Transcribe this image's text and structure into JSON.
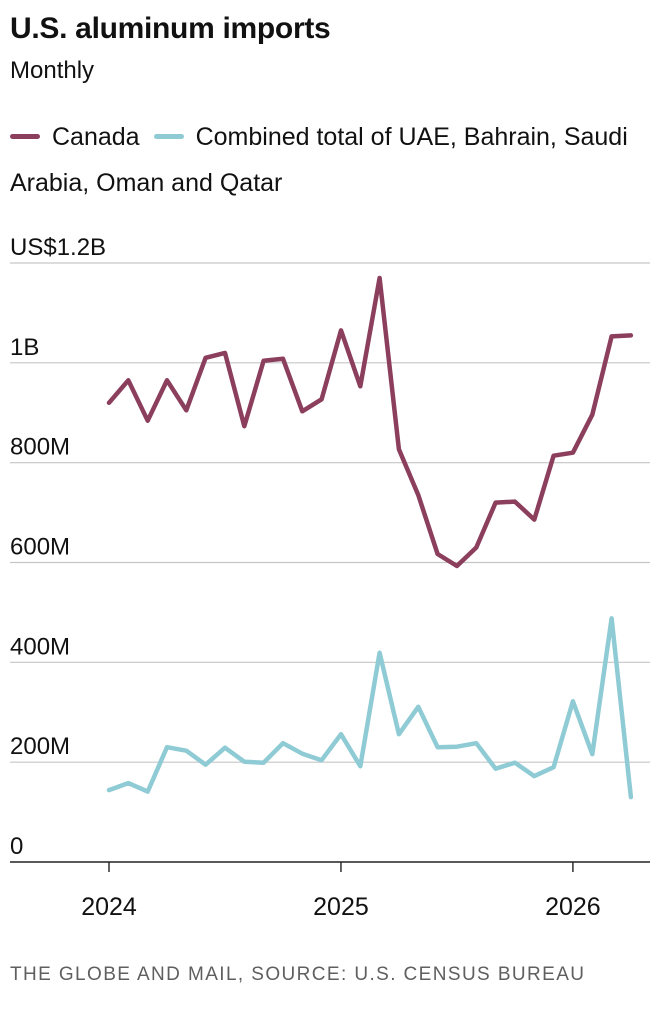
{
  "title": "U.S. aluminum imports",
  "subtitle": "Monthly",
  "source": "THE GLOBE AND MAIL, SOURCE: U.S. CENSUS BUREAU",
  "chart_data": {
    "type": "line",
    "title": "U.S. aluminum imports",
    "subtitle": "Monthly",
    "xlabel": "",
    "ylabel": "",
    "x": [
      "2024-01",
      "2024-02",
      "2024-03",
      "2024-04",
      "2024-05",
      "2024-06",
      "2024-07",
      "2024-08",
      "2024-09",
      "2024-10",
      "2024-11",
      "2024-12",
      "2025-01",
      "2025-02",
      "2025-03",
      "2025-04",
      "2025-05",
      "2025-06",
      "2025-07",
      "2025-08",
      "2025-09",
      "2025-10",
      "2025-11",
      "2025-12",
      "2026-01",
      "2026-02",
      "2026-03",
      "2026-04"
    ],
    "x_ticks": [
      {
        "value": "2024-01",
        "label": "2024"
      },
      {
        "value": "2025-01",
        "label": "2025"
      },
      {
        "value": "2026-01",
        "label": "2026"
      }
    ],
    "ylim": [
      0,
      1200000000
    ],
    "y_ticks": [
      {
        "value": 0,
        "label": "0"
      },
      {
        "value": 200000000,
        "label": "200M"
      },
      {
        "value": 400000000,
        "label": "400M"
      },
      {
        "value": 600000000,
        "label": "600M"
      },
      {
        "value": 800000000,
        "label": "800M"
      },
      {
        "value": 1000000000,
        "label": "1B"
      },
      {
        "value": 1200000000,
        "label": "US$1.2B"
      }
    ],
    "grid": true,
    "legend_position": "top",
    "series": [
      {
        "name": "Canada",
        "color": "#8b3f5c",
        "values": [
          920000000,
          965000000,
          884000000,
          965000000,
          905000000,
          1010000000,
          1020000000,
          873000000,
          1004000000,
          1008000000,
          903000000,
          927000000,
          1065000000,
          953000000,
          1170000000,
          827000000,
          735000000,
          617000000,
          593000000,
          630000000,
          720000000,
          722000000,
          686000000,
          814000000,
          820000000,
          896000000,
          1053000000,
          1055000000
        ]
      },
      {
        "name": "Combined total of UAE, Bahrain, Saudi Arabia, Oman and Qatar",
        "color": "#8fcbd4",
        "values": [
          144000000,
          158000000,
          141000000,
          230000000,
          223000000,
          195000000,
          229000000,
          201000000,
          199000000,
          238000000,
          217000000,
          204000000,
          256000000,
          192000000,
          419000000,
          256000000,
          311000000,
          230000000,
          231000000,
          238000000,
          187000000,
          199000000,
          172000000,
          190000000,
          322000000,
          216000000,
          488000000,
          130000000
        ]
      }
    ]
  }
}
